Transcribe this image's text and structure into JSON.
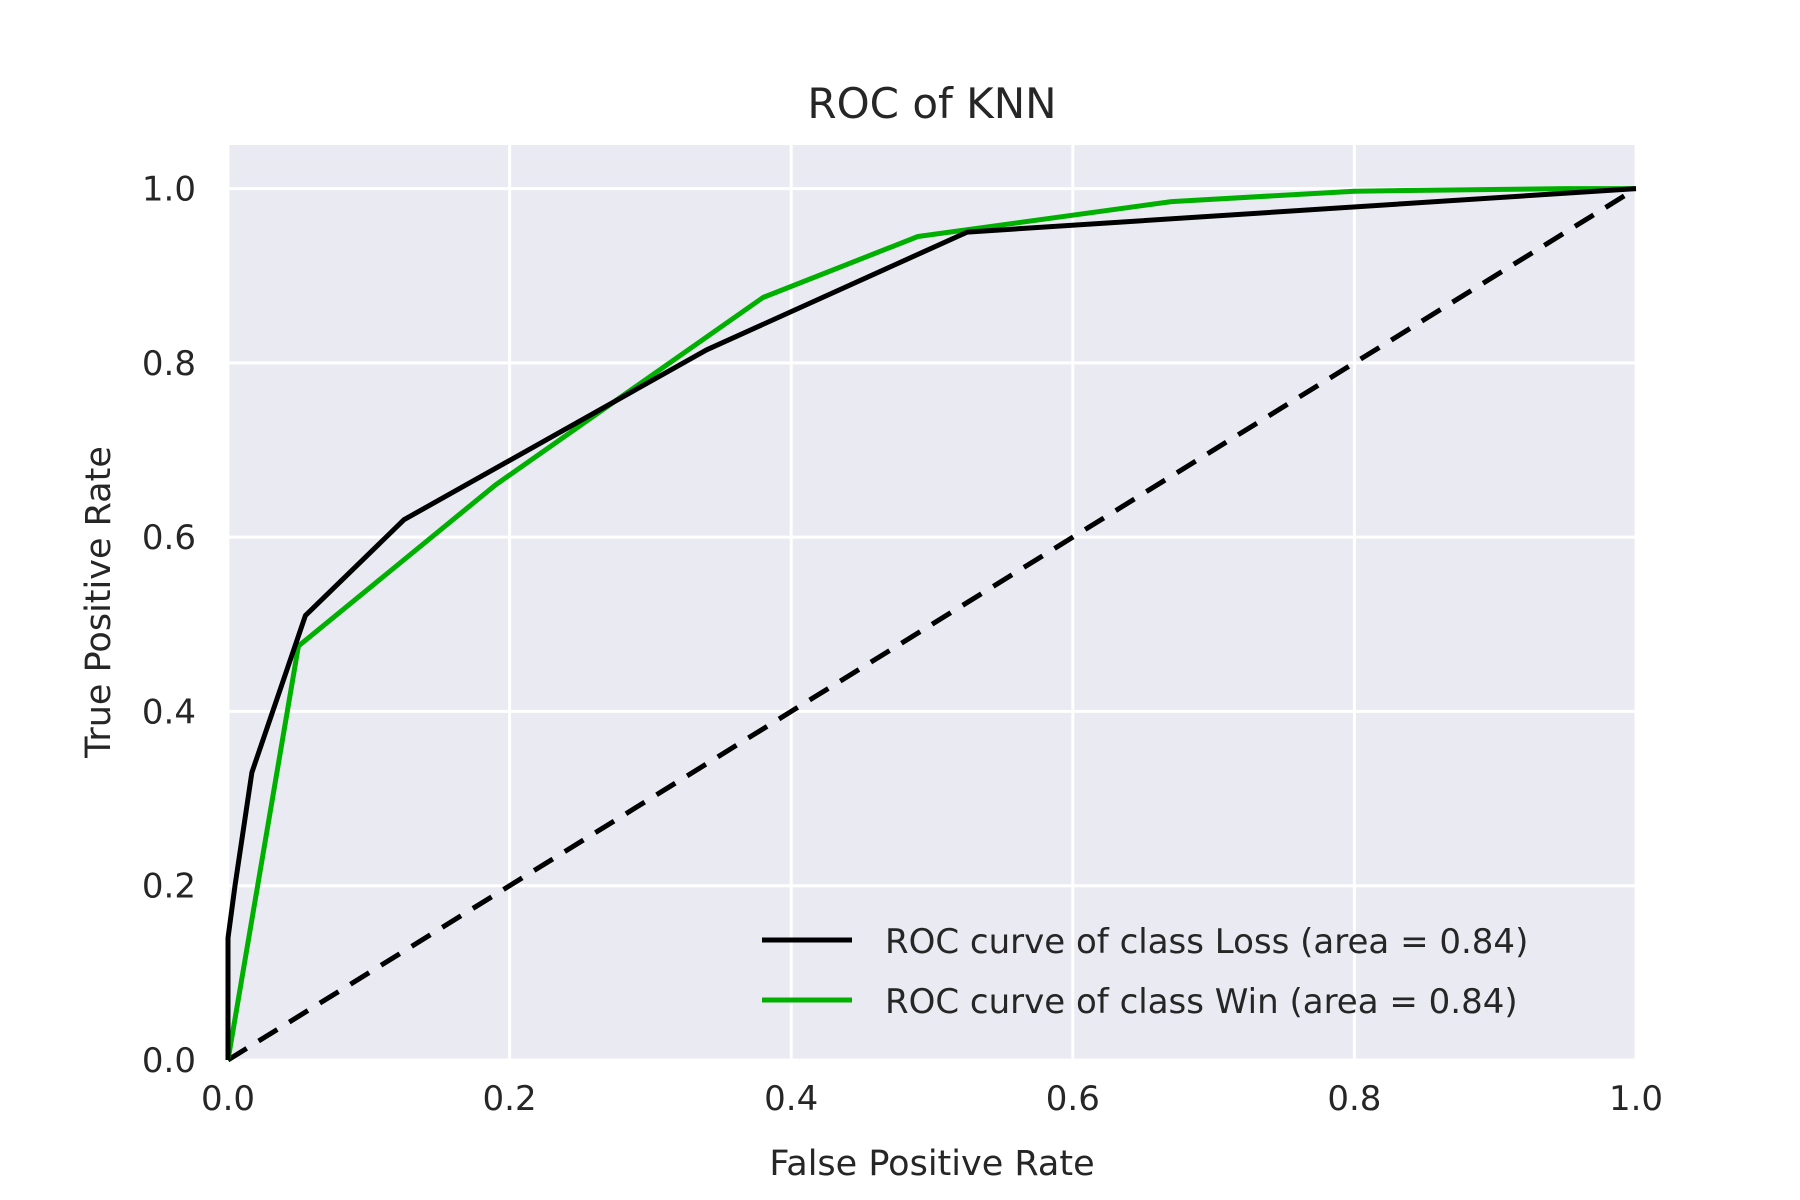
{
  "chart_data": {
    "type": "line",
    "title": "ROC of KNN",
    "xlabel": "False Positive Rate",
    "ylabel": "True Positive Rate",
    "xlim": [
      0.0,
      1.0
    ],
    "ylim": [
      0.0,
      1.05
    ],
    "xticks": [
      "0.0",
      "0.2",
      "0.4",
      "0.6",
      "0.8",
      "1.0"
    ],
    "yticks": [
      "0.0",
      "0.2",
      "0.4",
      "0.6",
      "0.8",
      "1.0"
    ],
    "grid": true,
    "legend_position": "lower-right",
    "series": [
      {
        "name": "ROC curve of class Loss (area = 0.84)",
        "color": "#000000",
        "x": [
          0.0,
          0.0,
          0.005,
          0.017,
          0.055,
          0.125,
          0.34,
          0.525,
          1.0
        ],
        "y": [
          0.0,
          0.14,
          0.2,
          0.33,
          0.51,
          0.62,
          0.815,
          0.95,
          1.0
        ]
      },
      {
        "name": "ROC curve of class Win (area = 0.84)",
        "color": "#00b000",
        "x": [
          0.0,
          0.05,
          0.19,
          0.38,
          0.49,
          0.67,
          0.8,
          0.95,
          1.0
        ],
        "y": [
          0.0,
          0.475,
          0.66,
          0.875,
          0.945,
          0.985,
          0.997,
          1.0,
          1.0
        ]
      },
      {
        "name": "",
        "color": "#000000",
        "dashed": true,
        "x": [
          0.0,
          1.0
        ],
        "y": [
          0.0,
          1.0
        ]
      }
    ]
  }
}
